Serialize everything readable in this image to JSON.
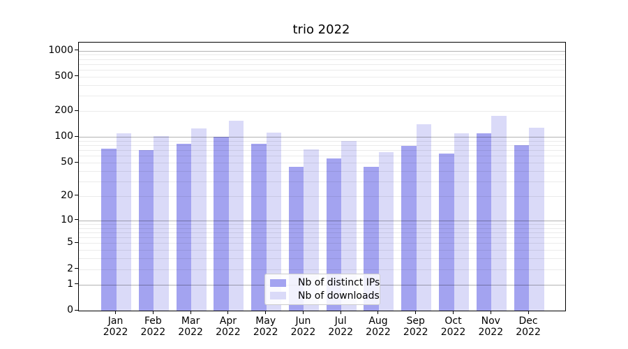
{
  "figure": {
    "background": "#ffffff"
  },
  "chart_data": {
    "type": "bar",
    "title": "trio 2022",
    "categories": [
      {
        "line1": "Jan",
        "line2": "2022"
      },
      {
        "line1": "Feb",
        "line2": "2022"
      },
      {
        "line1": "Mar",
        "line2": "2022"
      },
      {
        "line1": "Apr",
        "line2": "2022"
      },
      {
        "line1": "May",
        "line2": "2022"
      },
      {
        "line1": "Jun",
        "line2": "2022"
      },
      {
        "line1": "Jul",
        "line2": "2022"
      },
      {
        "line1": "Aug",
        "line2": "2022"
      },
      {
        "line1": "Sep",
        "line2": "2022"
      },
      {
        "line1": "Oct",
        "line2": "2022"
      },
      {
        "line1": "Nov",
        "line2": "2022"
      },
      {
        "line1": "Dec",
        "line2": "2022"
      }
    ],
    "series": [
      {
        "name": "Nb of distinct IPs",
        "color": "#a3a3f0",
        "values": [
          73,
          70,
          84,
          100,
          84,
          45,
          56,
          45,
          78,
          64,
          111,
          80
        ]
      },
      {
        "name": "Nb of downloads",
        "color": "#dadaf8",
        "values": [
          111,
          103,
          126,
          153,
          113,
          71,
          90,
          66,
          141,
          111,
          175,
          127
        ]
      }
    ],
    "yscale": "log1p",
    "ylim": [
      0,
      1240
    ],
    "yticks": [
      1000,
      500,
      200,
      100,
      50,
      20,
      10,
      5,
      2,
      1,
      0
    ],
    "major_gridlines": [
      1,
      10,
      100,
      1000
    ],
    "minor_gridline_decades": [
      1,
      10,
      100
    ],
    "minor_gridline_multiples": [
      2,
      3,
      4,
      5,
      6,
      7,
      8,
      9
    ],
    "grid": true,
    "legend_position": "lower-center",
    "colors": {
      "grid_major": "#b3b3b3",
      "grid_minor": "#ebebeb",
      "axis": "#000000",
      "text": "#000000"
    }
  }
}
